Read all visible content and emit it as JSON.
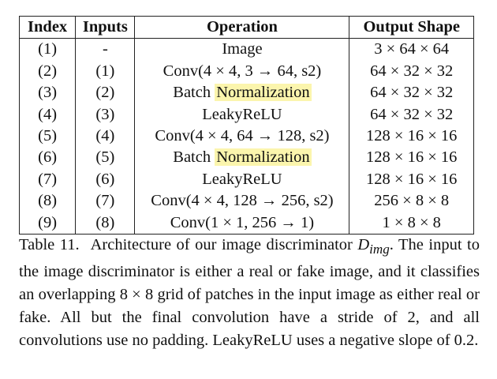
{
  "table": {
    "headers": [
      "Index",
      "Inputs",
      "Operation",
      "Output Shape"
    ],
    "rows": [
      {
        "index": "(1)",
        "inputs": "-",
        "op": "Image",
        "highlight": "",
        "shape": "3 × 64 × 64"
      },
      {
        "index": "(2)",
        "inputs": "(1)",
        "op": "Conv(4 × 4, 3 → 64, s2)",
        "highlight": "",
        "shape": "64 × 32 × 32"
      },
      {
        "index": "(3)",
        "inputs": "(2)",
        "op": "Batch ",
        "highlight": "Normalization",
        "shape": "64 × 32 × 32"
      },
      {
        "index": "(4)",
        "inputs": "(3)",
        "op": "LeakyReLU",
        "highlight": "",
        "shape": "64 × 32 × 32"
      },
      {
        "index": "(5)",
        "inputs": "(4)",
        "op": "Conv(4 × 4, 64 → 128, s2)",
        "highlight": "",
        "shape": "128 × 16 × 16"
      },
      {
        "index": "(6)",
        "inputs": "(5)",
        "op": "Batch ",
        "highlight": "Normalization",
        "shape": "128 × 16 × 16"
      },
      {
        "index": "(7)",
        "inputs": "(6)",
        "op": "LeakyReLU",
        "highlight": "",
        "shape": "128 × 16 × 16"
      },
      {
        "index": "(8)",
        "inputs": "(7)",
        "op": "Conv(4 × 4, 128 → 256, s2)",
        "highlight": "",
        "shape": "256 × 8 × 8"
      },
      {
        "index": "(9)",
        "inputs": "(8)",
        "op": "Conv(1 × 1, 256 → 1)",
        "highlight": "",
        "shape": "1 × 8 × 8"
      }
    ]
  },
  "caption": {
    "label": "Table 11.",
    "text_before_math": "Architecture of our image discriminator ",
    "math": "D",
    "math_sub": "img",
    "text_after_math": ". The input to the image discriminator is either a real or fake image, and it classifies an overlapping 8 × 8 grid of patches in the input image as either real or fake. All but the final convolution have a stride of 2, and all convolutions use no padding. LeakyReLU uses a negative slope of 0.2."
  },
  "colors": {
    "highlight": "#fbf5ad",
    "rule": "#222222"
  }
}
